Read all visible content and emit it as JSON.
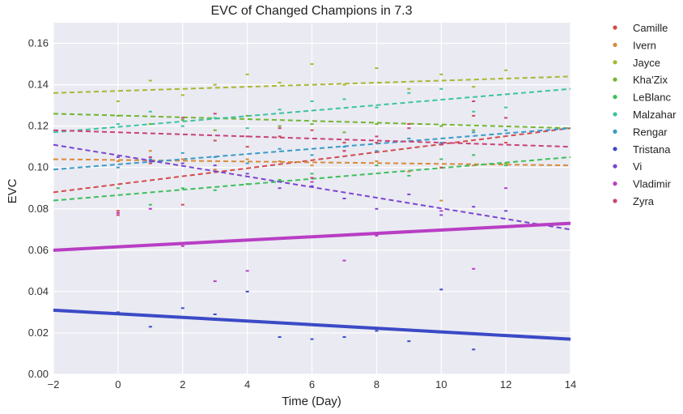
{
  "chart_data": {
    "type": "scatter",
    "title": "EVC of Changed Champions in 7.3",
    "xlabel": "Time (Day)",
    "ylabel": "EVC",
    "xlim": [
      -2,
      14
    ],
    "ylim": [
      0.0,
      0.17
    ],
    "xticks": [
      -2,
      0,
      2,
      4,
      6,
      8,
      10,
      12,
      14
    ],
    "yticks": [
      0.0,
      0.02,
      0.04,
      0.06,
      0.08,
      0.1,
      0.12,
      0.14,
      0.16
    ],
    "ytick_labels": [
      "0.00",
      "0.02",
      "0.04",
      "0.06",
      "0.08",
      "0.10",
      "0.12",
      "0.14",
      "0.16"
    ],
    "grid": true,
    "legend_position": "outside-right",
    "series": [
      {
        "name": "Camille",
        "color": "#d44a4a",
        "line_style": "dashed",
        "fit": {
          "start": 0.088,
          "end": 0.119
        },
        "points": [
          [
            0,
            0.079
          ],
          [
            1,
            0.102
          ],
          [
            2,
            0.082
          ],
          [
            3,
            0.113
          ],
          [
            4,
            0.11
          ],
          [
            5,
            0.115
          ],
          [
            6,
            0.118
          ],
          [
            7,
            0.112
          ],
          [
            8,
            0.112
          ],
          [
            9,
            0.121
          ],
          [
            10,
            0.1
          ],
          [
            11,
            0.125
          ],
          [
            12,
            0.112
          ]
        ]
      },
      {
        "name": "Ivern",
        "color": "#d98b3a",
        "line_style": "dashed",
        "fit": {
          "start": 0.104,
          "end": 0.101
        },
        "points": [
          [
            0,
            0.103
          ],
          [
            1,
            0.108
          ],
          [
            2,
            0.104
          ],
          [
            3,
            0.099
          ],
          [
            4,
            0.104
          ],
          [
            5,
            0.103
          ],
          [
            6,
            0.101
          ],
          [
            7,
            0.108
          ],
          [
            8,
            0.103
          ],
          [
            9,
            0.098
          ],
          [
            10,
            0.084
          ],
          [
            11,
            0.101
          ],
          [
            12,
            0.102
          ]
        ]
      },
      {
        "name": "Jayce",
        "color": "#a8b832",
        "line_style": "dashed",
        "fit": {
          "start": 0.136,
          "end": 0.144
        },
        "points": [
          [
            0,
            0.132
          ],
          [
            1,
            0.142
          ],
          [
            2,
            0.135
          ],
          [
            3,
            0.14
          ],
          [
            4,
            0.145
          ],
          [
            5,
            0.141
          ],
          [
            6,
            0.15
          ],
          [
            7,
            0.14
          ],
          [
            8,
            0.148
          ],
          [
            9,
            0.138
          ],
          [
            10,
            0.145
          ],
          [
            11,
            0.139
          ],
          [
            12,
            0.147
          ]
        ]
      },
      {
        "name": "Kha'Zix",
        "color": "#72b632",
        "line_style": "dashed",
        "fit": {
          "start": 0.126,
          "end": 0.119
        },
        "points": [
          [
            0,
            0.125
          ],
          [
            1,
            0.121
          ],
          [
            2,
            0.123
          ],
          [
            3,
            0.118
          ],
          [
            4,
            0.125
          ],
          [
            5,
            0.12
          ],
          [
            6,
            0.121
          ],
          [
            7,
            0.117
          ],
          [
            8,
            0.121
          ],
          [
            9,
            0.114
          ],
          [
            10,
            0.12
          ],
          [
            11,
            0.118
          ],
          [
            12,
            0.102
          ]
        ]
      },
      {
        "name": "LeBlanc",
        "color": "#3cbf5a",
        "line_style": "dashed",
        "fit": {
          "start": 0.084,
          "end": 0.105
        },
        "points": [
          [
            0,
            0.09
          ],
          [
            1,
            0.082
          ],
          [
            2,
            0.09
          ],
          [
            3,
            0.089
          ],
          [
            4,
            0.092
          ],
          [
            5,
            0.094
          ],
          [
            6,
            0.097
          ],
          [
            7,
            0.085
          ],
          [
            8,
            0.101
          ],
          [
            9,
            0.096
          ],
          [
            10,
            0.104
          ],
          [
            11,
            0.106
          ],
          [
            12,
            0.101
          ]
        ]
      },
      {
        "name": "Malzahar",
        "color": "#3bc4a0",
        "line_style": "dashed",
        "fit": {
          "start": 0.117,
          "end": 0.138
        },
        "points": [
          [
            0,
            0.121
          ],
          [
            1,
            0.127
          ],
          [
            2,
            0.12
          ],
          [
            3,
            0.124
          ],
          [
            4,
            0.119
          ],
          [
            5,
            0.128
          ],
          [
            6,
            0.132
          ],
          [
            7,
            0.133
          ],
          [
            8,
            0.129
          ],
          [
            9,
            0.136
          ],
          [
            10,
            0.138
          ],
          [
            11,
            0.127
          ],
          [
            12,
            0.129
          ]
        ]
      },
      {
        "name": "Rengar",
        "color": "#3a9bc9",
        "line_style": "dashed",
        "fit": {
          "start": 0.099,
          "end": 0.119
        },
        "points": [
          [
            0,
            0.1
          ],
          [
            1,
            0.104
          ],
          [
            2,
            0.107
          ],
          [
            3,
            0.105
          ],
          [
            4,
            0.102
          ],
          [
            5,
            0.109
          ],
          [
            6,
            0.106
          ],
          [
            7,
            0.11
          ],
          [
            8,
            0.108
          ],
          [
            9,
            0.114
          ],
          [
            10,
            0.112
          ],
          [
            11,
            0.117
          ],
          [
            12,
            0.118
          ]
        ]
      },
      {
        "name": "Tristana",
        "color": "#3b4ac6",
        "line_style": "solid",
        "fit": {
          "start": 0.031,
          "end": 0.017
        },
        "points": [
          [
            0,
            0.03
          ],
          [
            1,
            0.023
          ],
          [
            2,
            0.032
          ],
          [
            3,
            0.029
          ],
          [
            4,
            0.04
          ],
          [
            5,
            0.018
          ],
          [
            6,
            0.017
          ],
          [
            7,
            0.018
          ],
          [
            8,
            0.021
          ],
          [
            9,
            0.016
          ],
          [
            10,
            0.041
          ],
          [
            11,
            0.012
          ],
          [
            12,
            0.019
          ]
        ]
      },
      {
        "name": "Vi",
        "color": "#7a45d0",
        "line_style": "dashed",
        "fit": {
          "start": 0.111,
          "end": 0.07
        },
        "points": [
          [
            0,
            0.105
          ],
          [
            1,
            0.103
          ],
          [
            2,
            0.102
          ],
          [
            3,
            0.101
          ],
          [
            4,
            0.097
          ],
          [
            5,
            0.09
          ],
          [
            6,
            0.091
          ],
          [
            7,
            0.085
          ],
          [
            8,
            0.08
          ],
          [
            9,
            0.087
          ],
          [
            10,
            0.077
          ],
          [
            11,
            0.081
          ],
          [
            12,
            0.079
          ]
        ]
      },
      {
        "name": "Vladimir",
        "color": "#b83ec4",
        "line_style": "solid",
        "fit": {
          "start": 0.06,
          "end": 0.073
        },
        "points": [
          [
            0,
            0.078
          ],
          [
            1,
            0.08
          ],
          [
            2,
            0.062
          ],
          [
            3,
            0.045
          ],
          [
            4,
            0.05
          ],
          [
            5,
            0.066
          ],
          [
            6,
            0.093
          ],
          [
            7,
            0.055
          ],
          [
            8,
            0.067
          ],
          [
            9,
            0.069
          ],
          [
            10,
            0.079
          ],
          [
            11,
            0.051
          ],
          [
            12,
            0.09
          ]
        ]
      },
      {
        "name": "Zyra",
        "color": "#c8427a",
        "line_style": "dashed",
        "fit": {
          "start": 0.118,
          "end": 0.11
        },
        "points": [
          [
            0,
            0.077
          ],
          [
            1,
            0.105
          ],
          [
            2,
            0.124
          ],
          [
            3,
            0.126
          ],
          [
            4,
            0.115
          ],
          [
            5,
            0.119
          ],
          [
            6,
            0.095
          ],
          [
            7,
            0.108
          ],
          [
            8,
            0.115
          ],
          [
            9,
            0.119
          ],
          [
            10,
            0.111
          ],
          [
            11,
            0.132
          ],
          [
            12,
            0.124
          ]
        ]
      }
    ]
  }
}
